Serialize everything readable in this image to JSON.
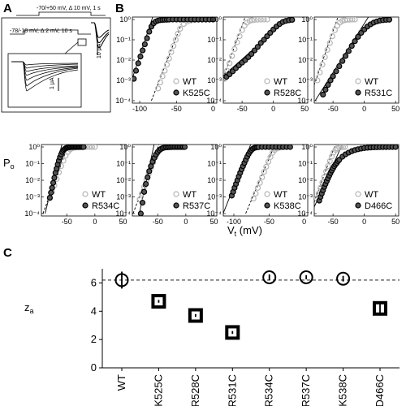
{
  "panel_labels": {
    "a": "A",
    "b": "B",
    "c": "C"
  },
  "panel_a": {
    "protocol_top": "-70/+50 mV, Δ 10 mV, 1 s",
    "protocol_bottom": "-78/-18 mV, Δ 2 mV, 10 s",
    "scale_main": "10 μA",
    "scale_inset": "1 μA"
  },
  "chart_data": [
    {
      "type": "scatter",
      "panel": "B",
      "subplots": [
        {
          "mutant": "K525C",
          "xlim": [
            -110,
            5
          ],
          "xticks": [
            -100,
            -50,
            0
          ],
          "wt": {
            "x": [
              -75,
              -72,
              -69,
              -66,
              -63,
              -60,
              -57,
              -54,
              -51,
              -48,
              -45,
              -40,
              -35,
              -30,
              -25,
              -20,
              -15,
              -10,
              -5,
              0
            ],
            "y": [
              0.0004,
              0.0008,
              0.0016,
              0.003,
              0.006,
              0.012,
              0.025,
              0.05,
              0.1,
              0.2,
              0.35,
              0.6,
              0.8,
              0.9,
              0.95,
              0.97,
              0.98,
              0.99,
              1,
              1
            ]
          },
          "mutant_points": {
            "x": [
              -108,
              -105,
              -102,
              -99,
              -96,
              -93,
              -90,
              -87,
              -84,
              -81,
              -78,
              -75,
              -72,
              -69,
              -66,
              -63,
              -60,
              -55,
              -50,
              -45,
              -40,
              -35,
              -30,
              -25,
              -20,
              -15,
              -10,
              -5,
              0
            ],
            "y": [
              0.0012,
              0.003,
              0.007,
              0.015,
              0.03,
              0.06,
              0.12,
              0.25,
              0.45,
              0.65,
              0.8,
              0.88,
              0.93,
              0.95,
              0.97,
              0.98,
              0.99,
              1,
              1,
              1,
              1,
              1,
              1,
              1,
              1,
              1,
              1,
              1,
              1
            ]
          }
        },
        {
          "mutant": "R528C",
          "xlim": [
            -80,
            55
          ],
          "xticks": [
            -50,
            0,
            50
          ],
          "wt": {
            "x": [
              -78,
              -74,
              -70,
              -66,
              -62,
              -58,
              -54,
              -50,
              -46,
              -42,
              -38,
              -34,
              -30,
              -25,
              -20,
              -15,
              -10
            ],
            "y": [
              0.0012,
              0.003,
              0.007,
              0.016,
              0.035,
              0.075,
              0.15,
              0.3,
              0.5,
              0.7,
              0.85,
              0.92,
              0.96,
              0.98,
              0.99,
              1,
              1
            ]
          },
          "mutant_points": {
            "x": [
              -75,
              -70,
              -65,
              -60,
              -55,
              -50,
              -45,
              -40,
              -35,
              -30,
              -25,
              -20,
              -15,
              -10,
              -5,
              0,
              5,
              10,
              15,
              20,
              25,
              30
            ],
            "y": [
              0.0015,
              0.002,
              0.0028,
              0.004,
              0.0055,
              0.0075,
              0.01,
              0.014,
              0.02,
              0.03,
              0.045,
              0.07,
              0.1,
              0.15,
              0.22,
              0.32,
              0.45,
              0.6,
              0.75,
              0.85,
              0.92,
              0.96
            ]
          }
        },
        {
          "mutant": "R531C",
          "xlim": [
            -80,
            55
          ],
          "xticks": [
            -50,
            0,
            50
          ],
          "wt": {
            "x": [
              -75,
              -71,
              -67,
              -63,
              -59,
              -55,
              -51,
              -47,
              -43,
              -39,
              -35,
              -31,
              -27,
              -23,
              -19,
              -15
            ],
            "y": [
              0.001,
              0.0025,
              0.006,
              0.014,
              0.032,
              0.07,
              0.15,
              0.3,
              0.5,
              0.7,
              0.85,
              0.93,
              0.97,
              0.99,
              1,
              1
            ]
          },
          "mutant_points": {
            "x": [
              -66,
              -62,
              -58,
              -54,
              -50,
              -45,
              -40,
              -35,
              -30,
              -25,
              -20,
              -15,
              -10,
              -5,
              0,
              5,
              10,
              15,
              20,
              25,
              30,
              35,
              40
            ],
            "y": [
              0.0002,
              0.00035,
              0.0006,
              0.001,
              0.0016,
              0.0028,
              0.005,
              0.009,
              0.016,
              0.028,
              0.05,
              0.085,
              0.14,
              0.22,
              0.32,
              0.45,
              0.58,
              0.7,
              0.8,
              0.88,
              0.93,
              0.96,
              0.98
            ]
          }
        },
        {
          "mutant": "R534C",
          "xlim": [
            -95,
            55
          ],
          "xticks": [
            -50,
            0,
            50
          ],
          "wt": {
            "x": [
              -80,
              -76,
              -72,
              -68,
              -64,
              -60,
              -56,
              -52,
              -48,
              -44,
              -40,
              -35,
              -30,
              -25,
              -20,
              -15,
              -10,
              -5,
              0
            ],
            "y": [
              0.0008,
              0.002,
              0.005,
              0.012,
              0.03,
              0.07,
              0.15,
              0.3,
              0.5,
              0.7,
              0.85,
              0.93,
              0.97,
              0.99,
              1,
              1,
              1,
              1,
              1
            ]
          },
          "mutant_points": {
            "x": [
              -80,
              -78,
              -76,
              -74,
              -72,
              -70,
              -68,
              -66,
              -64,
              -62,
              -60,
              -58,
              -56,
              -54,
              -52,
              -50,
              -48,
              -46,
              -44,
              -42,
              -40,
              -38,
              -36,
              -34,
              -32,
              -30,
              -28,
              -26,
              -24,
              -22,
              -20
            ],
            "y": [
              0.0009,
              0.0018,
              0.0035,
              0.007,
              0.014,
              0.028,
              0.05,
              0.09,
              0.15,
              0.24,
              0.36,
              0.5,
              0.63,
              0.74,
              0.83,
              0.89,
              0.93,
              0.96,
              0.98,
              0.99,
              1,
              1,
              1,
              1,
              1,
              1,
              1,
              1,
              1,
              1,
              1
            ]
          }
        },
        {
          "mutant": "R537C",
          "xlim": [
            -95,
            55
          ],
          "xticks": [
            -50,
            0,
            50
          ],
          "wt": {
            "x": [
              -82,
              -78,
              -74,
              -70,
              -66,
              -62,
              -58,
              -54,
              -50,
              -46,
              -42,
              -38,
              -34,
              -30,
              -26,
              -22
            ],
            "y": [
              0.0007,
              0.0016,
              0.004,
              0.01,
              0.024,
              0.055,
              0.12,
              0.25,
              0.45,
              0.65,
              0.82,
              0.92,
              0.96,
              0.98,
              0.99,
              1
            ]
          },
          "mutant_points": {
            "x": [
              -80,
              -77,
              -74,
              -71,
              -68,
              -65,
              -62,
              -59,
              -56,
              -53,
              -50,
              -47,
              -44,
              -41,
              -38,
              -35,
              -32,
              -29,
              -26,
              -23,
              -20,
              -17,
              -14,
              -11,
              -8,
              -5,
              -2
            ],
            "y": [
              0.0001,
              0.00045,
              0.002,
              0.006,
              0.015,
              0.035,
              0.07,
              0.13,
              0.22,
              0.35,
              0.5,
              0.65,
              0.77,
              0.86,
              0.92,
              0.95,
              0.97,
              0.98,
              0.99,
              1,
              1,
              1,
              1,
              1,
              1,
              1,
              1
            ]
          }
        },
        {
          "mutant": "K538C",
          "xlim": [
            -115,
            5
          ],
          "xticks": [
            -100,
            -50,
            0
          ],
          "wt": {
            "x": [
              -72,
              -69,
              -66,
              -63,
              -60,
              -57,
              -54,
              -51,
              -48,
              -45,
              -42,
              -39,
              -36,
              -33,
              -30
            ],
            "y": [
              0.0008,
              0.0016,
              0.0035,
              0.007,
              0.015,
              0.032,
              0.065,
              0.13,
              0.25,
              0.45,
              0.65,
              0.8,
              0.9,
              0.95,
              0.98
            ]
          },
          "mutant_points": {
            "x": [
              -103,
              -101,
              -99,
              -97,
              -95,
              -93,
              -91,
              -89,
              -87,
              -85,
              -83,
              -81,
              -79,
              -77,
              -75,
              -73,
              -71,
              -69,
              -67,
              -65,
              -60,
              -55,
              -50,
              -45,
              -40,
              -35,
              -30,
              -25,
              -20
            ],
            "y": [
              0.0012,
              0.002,
              0.0035,
              0.006,
              0.01,
              0.017,
              0.028,
              0.045,
              0.07,
              0.11,
              0.17,
              0.26,
              0.38,
              0.52,
              0.66,
              0.78,
              0.87,
              0.93,
              0.96,
              0.98,
              1,
              1,
              1,
              1,
              1,
              1,
              1,
              1,
              1
            ]
          }
        },
        {
          "mutant": "D466C",
          "xlim": [
            -80,
            55
          ],
          "xticks": [
            -50,
            0,
            50
          ],
          "wt": {
            "x": [
              -76,
              -73,
              -70,
              -67,
              -64,
              -61,
              -58,
              -55,
              -52,
              -49,
              -46,
              -43,
              -40,
              -37,
              -34,
              -31
            ],
            "y": [
              0.0008,
              0.0016,
              0.0035,
              0.0075,
              0.016,
              0.034,
              0.07,
              0.14,
              0.27,
              0.47,
              0.67,
              0.83,
              0.92,
              0.96,
              0.98,
              0.99
            ]
          },
          "mutant_points": {
            "x": [
              -72,
              -70,
              -68,
              -66,
              -64,
              -62,
              -60,
              -58,
              -56,
              -54,
              -52,
              -50,
              -48,
              -46,
              -44,
              -42,
              -40,
              -35,
              -30,
              -25,
              -20,
              -15,
              -10,
              -5,
              0,
              5,
              10,
              15,
              20,
              25,
              30,
              35,
              40,
              45,
              50
            ],
            "y": [
              0.0006,
              0.001,
              0.0016,
              0.0025,
              0.004,
              0.006,
              0.009,
              0.013,
              0.019,
              0.027,
              0.038,
              0.052,
              0.07,
              0.09,
              0.11,
              0.14,
              0.17,
              0.26,
              0.36,
              0.46,
              0.56,
              0.65,
              0.73,
              0.8,
              0.86,
              0.9,
              0.93,
              0.95,
              0.97,
              0.98,
              0.99,
              0.99,
              1,
              1,
              1
            ]
          }
        }
      ],
      "ylabel": "P",
      "ylabel_sub": "o",
      "xlabel": "V",
      "xlabel_sub": "t",
      "xlabel_unit": " (mV)",
      "yticks": [
        "10⁰",
        "10⁻¹",
        "10⁻²",
        "10⁻³",
        "10⁻⁴"
      ],
      "legend_wt": "WT",
      "wt_color": "#b5b5b5",
      "mutant_color": "#000000"
    },
    {
      "type": "scatter",
      "panel": "C",
      "categories": [
        "WT",
        "K525C",
        "R528C",
        "R531C",
        "R534C",
        "R537C",
        "K538C",
        "D466C"
      ],
      "values": [
        6.2,
        4.7,
        3.7,
        2.5,
        6.4,
        6.4,
        6.3,
        4.2
      ],
      "errors": [
        0.6,
        0.1,
        0.1,
        0.1,
        0.2,
        0.15,
        0.2,
        0.5
      ],
      "markers": [
        "circle",
        "square",
        "square",
        "square",
        "circle",
        "circle",
        "circle",
        "square"
      ],
      "reference_line": 6.2,
      "ylim": [
        0,
        7
      ],
      "yticks": [
        "0",
        "2",
        "4",
        "6"
      ],
      "ylabel": "z",
      "ylabel_sub": "a"
    }
  ]
}
